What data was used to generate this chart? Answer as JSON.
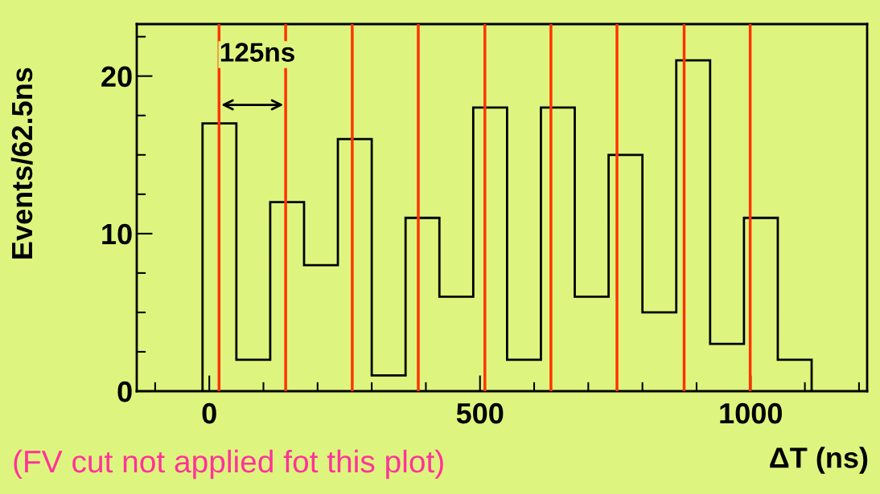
{
  "chart_data": {
    "type": "histogram",
    "xlabel": "ΔT (ns)",
    "ylabel": "Events/62.5ns",
    "bins": [
      -12.5,
      50,
      112.5,
      175,
      237.5,
      300,
      362.5,
      425,
      487.5,
      550,
      612.5,
      675,
      737.5,
      800,
      862.5,
      925,
      987.5,
      1050,
      1112.5
    ],
    "values": [
      17,
      2,
      12,
      8,
      16,
      1,
      11,
      6,
      18,
      2,
      18,
      6,
      15,
      5,
      21,
      3,
      11,
      2
    ],
    "color": "#000000",
    "xlim": [
      -134,
      1215
    ],
    "ylim": [
      0,
      23.3
    ],
    "xticks": [
      0,
      500,
      1000
    ],
    "yticks": [
      0,
      10,
      20
    ],
    "ref_lines": [
      {
        "axis": "x",
        "value": 18,
        "color": "#ff3300"
      },
      {
        "axis": "x",
        "value": 141,
        "color": "#ff3300"
      },
      {
        "axis": "x",
        "value": 264,
        "color": "#ff3300"
      },
      {
        "axis": "x",
        "value": 386,
        "color": "#ff3300"
      },
      {
        "axis": "x",
        "value": 509,
        "color": "#ff3300"
      },
      {
        "axis": "x",
        "value": 631,
        "color": "#ff3300"
      },
      {
        "axis": "x",
        "value": 753,
        "color": "#ff3300"
      },
      {
        "axis": "x",
        "value": 877,
        "color": "#ff3300"
      },
      {
        "axis": "x",
        "value": 999,
        "color": "#ff3300"
      }
    ],
    "annotations": [
      "125ns",
      "(FV cut not applied fot this plot)"
    ],
    "grid": false
  }
}
